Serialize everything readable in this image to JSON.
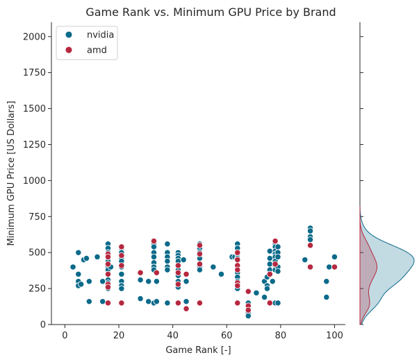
{
  "chart_data": {
    "type": "scatter",
    "title": "Game Rank vs. Minimum GPU Price by Brand",
    "xlabel": "Game Rank [-]",
    "ylabel": "Minimum GPU Price [US Dollars]",
    "xlim": [
      -5,
      104
    ],
    "ylim": [
      0,
      2100
    ],
    "xticks": [
      0,
      20,
      40,
      60,
      80,
      100
    ],
    "yticks": [
      0,
      250,
      500,
      750,
      1000,
      1250,
      1500,
      1750,
      2000
    ],
    "grid": false,
    "legend_position": "top-left",
    "marginal": "kde on right side (density of price per brand)",
    "series": [
      {
        "name": "nvidia",
        "color": "#0b6a8a",
        "points": [
          [
            3,
            400
          ],
          [
            5,
            500
          ],
          [
            5,
            350
          ],
          [
            5,
            300
          ],
          [
            5,
            270
          ],
          [
            6,
            280
          ],
          [
            7,
            450
          ],
          [
            8,
            460
          ],
          [
            9,
            160
          ],
          [
            9,
            300
          ],
          [
            12,
            470
          ],
          [
            14,
            160
          ],
          [
            14,
            300
          ],
          [
            16,
            560
          ],
          [
            16,
            530
          ],
          [
            16,
            500
          ],
          [
            16,
            470
          ],
          [
            16,
            440
          ],
          [
            16,
            400
          ],
          [
            16,
            380
          ],
          [
            16,
            350
          ],
          [
            16,
            310
          ],
          [
            16,
            290
          ],
          [
            16,
            250
          ],
          [
            17,
            400
          ],
          [
            21,
            530
          ],
          [
            21,
            500
          ],
          [
            21,
            460
          ],
          [
            21,
            440
          ],
          [
            21,
            400
          ],
          [
            21,
            350
          ],
          [
            21,
            300
          ],
          [
            21,
            270
          ],
          [
            21,
            250
          ],
          [
            28,
            310
          ],
          [
            28,
            180
          ],
          [
            31,
            300
          ],
          [
            31,
            160
          ],
          [
            33,
            560
          ],
          [
            33,
            540
          ],
          [
            33,
            500
          ],
          [
            33,
            470
          ],
          [
            33,
            430
          ],
          [
            33,
            400
          ],
          [
            33,
            380
          ],
          [
            33,
            150
          ],
          [
            34,
            160
          ],
          [
            34,
            300
          ],
          [
            38,
            560
          ],
          [
            38,
            500
          ],
          [
            38,
            470
          ],
          [
            38,
            440
          ],
          [
            38,
            400
          ],
          [
            38,
            380
          ],
          [
            38,
            150
          ],
          [
            42,
            500
          ],
          [
            42,
            480
          ],
          [
            42,
            460
          ],
          [
            42,
            440
          ],
          [
            42,
            380
          ],
          [
            42,
            340
          ],
          [
            42,
            300
          ],
          [
            42,
            260
          ],
          [
            42,
            150
          ],
          [
            44,
            450
          ],
          [
            45,
            160
          ],
          [
            45,
            300
          ],
          [
            50,
            560
          ],
          [
            50,
            530
          ],
          [
            50,
            500
          ],
          [
            50,
            460
          ],
          [
            50,
            400
          ],
          [
            50,
            380
          ],
          [
            55,
            400
          ],
          [
            58,
            350
          ],
          [
            62,
            470
          ],
          [
            63,
            470
          ],
          [
            64,
            560
          ],
          [
            64,
            530
          ],
          [
            64,
            490
          ],
          [
            64,
            460
          ],
          [
            64,
            400
          ],
          [
            64,
            360
          ],
          [
            64,
            330
          ],
          [
            64,
            300
          ],
          [
            64,
            250
          ],
          [
            68,
            150
          ],
          [
            68,
            110
          ],
          [
            68,
            80
          ],
          [
            68,
            60
          ],
          [
            71,
            220
          ],
          [
            74,
            190
          ],
          [
            74,
            300
          ],
          [
            75,
            330
          ],
          [
            75,
            270
          ],
          [
            75,
            250
          ],
          [
            76,
            510
          ],
          [
            76,
            460
          ],
          [
            76,
            420
          ],
          [
            76,
            380
          ],
          [
            76,
            350
          ],
          [
            77,
            300
          ],
          [
            78,
            560
          ],
          [
            78,
            540
          ],
          [
            78,
            510
          ],
          [
            78,
            490
          ],
          [
            78,
            470
          ],
          [
            78,
            440
          ],
          [
            78,
            410
          ],
          [
            78,
            380
          ],
          [
            78,
            150
          ],
          [
            79,
            540
          ],
          [
            79,
            500
          ],
          [
            79,
            470
          ],
          [
            79,
            400
          ],
          [
            79,
            370
          ],
          [
            79,
            150
          ],
          [
            89,
            450
          ],
          [
            91,
            670
          ],
          [
            91,
            650
          ],
          [
            91,
            610
          ],
          [
            91,
            590
          ],
          [
            97,
            190
          ],
          [
            97,
            300
          ],
          [
            98,
            400
          ],
          [
            100,
            470
          ]
        ]
      },
      {
        "name": "amd",
        "color": "#b5283f",
        "points": [
          [
            16,
            490
          ],
          [
            16,
            470
          ],
          [
            16,
            420
          ],
          [
            16,
            350
          ],
          [
            16,
            280
          ],
          [
            16,
            260
          ],
          [
            16,
            150
          ],
          [
            21,
            540
          ],
          [
            21,
            480
          ],
          [
            21,
            410
          ],
          [
            21,
            150
          ],
          [
            28,
            360
          ],
          [
            33,
            580
          ],
          [
            34,
            360
          ],
          [
            42,
            410
          ],
          [
            42,
            360
          ],
          [
            42,
            280
          ],
          [
            42,
            150
          ],
          [
            45,
            110
          ],
          [
            45,
            350
          ],
          [
            50,
            550
          ],
          [
            50,
            490
          ],
          [
            50,
            420
          ],
          [
            50,
            150
          ],
          [
            64,
            500
          ],
          [
            64,
            450
          ],
          [
            64,
            410
          ],
          [
            64,
            380
          ],
          [
            64,
            290
          ],
          [
            64,
            270
          ],
          [
            64,
            150
          ],
          [
            68,
            230
          ],
          [
            68,
            130
          ],
          [
            68,
            100
          ],
          [
            76,
            350
          ],
          [
            76,
            150
          ],
          [
            78,
            580
          ],
          [
            78,
            420
          ],
          [
            91,
            550
          ],
          [
            91,
            400
          ],
          [
            100,
            400
          ]
        ]
      }
    ]
  }
}
